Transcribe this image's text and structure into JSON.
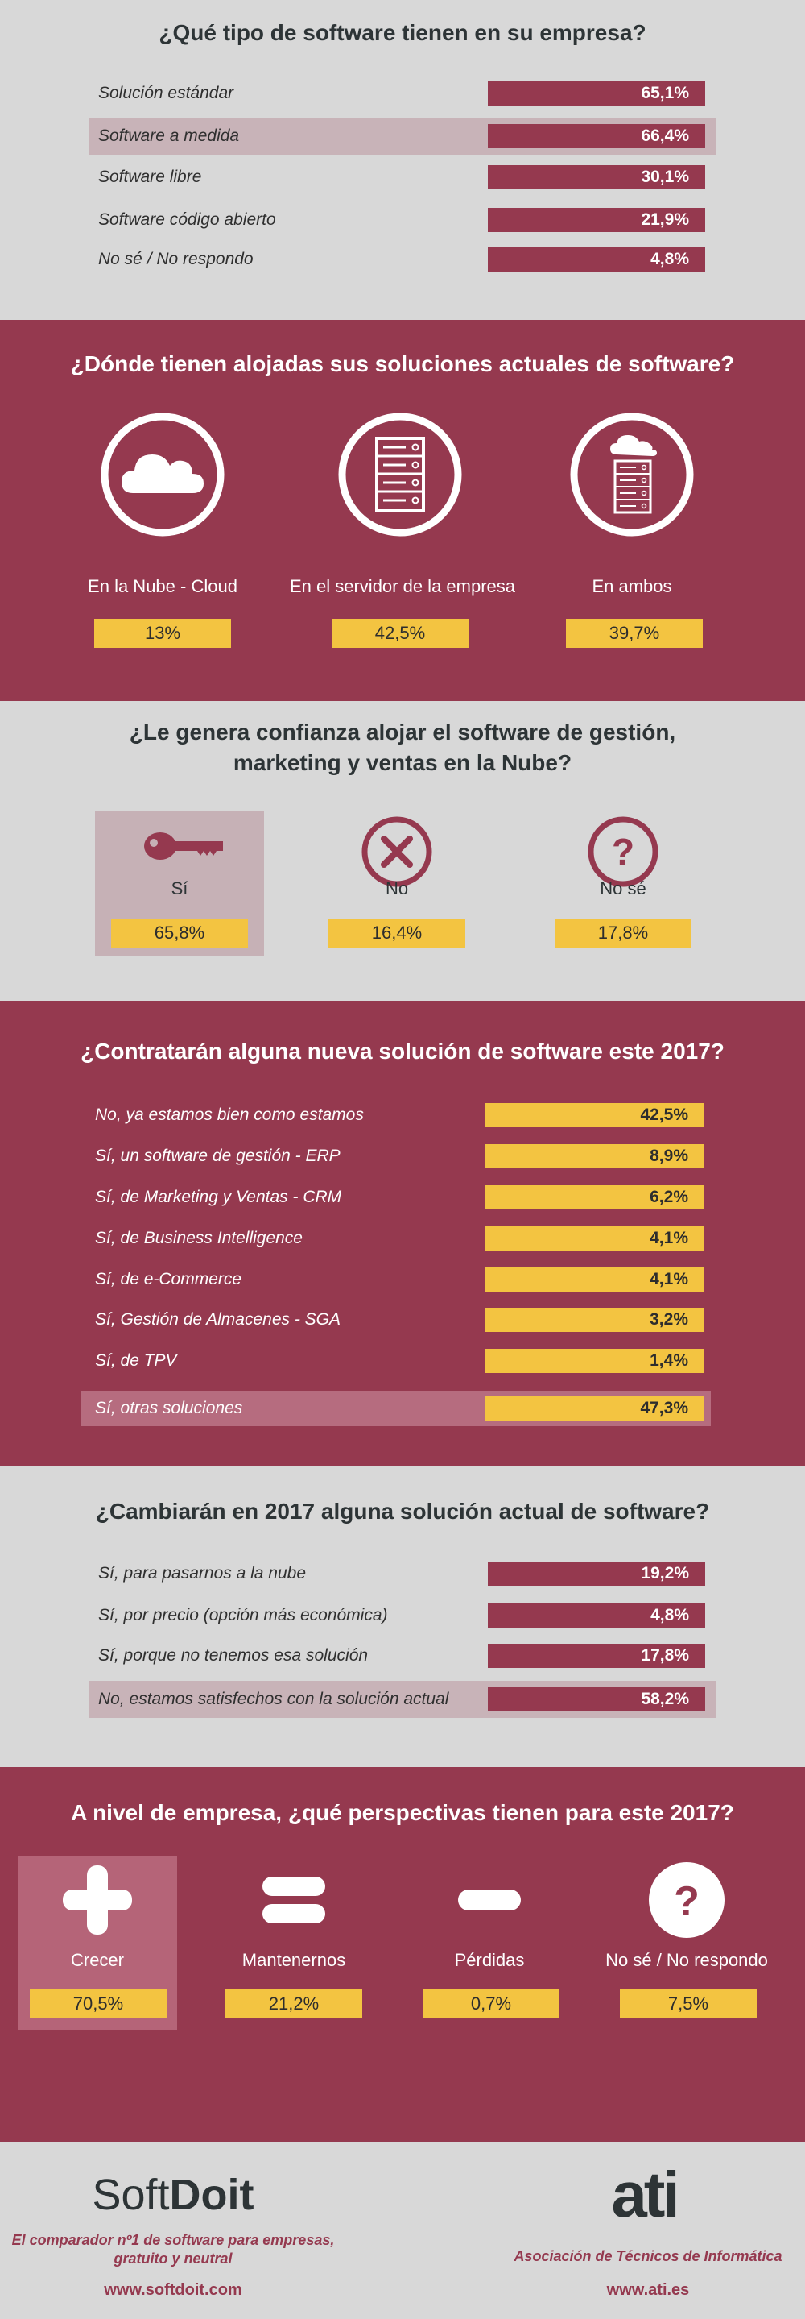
{
  "section1": {
    "title": "¿Qué tipo de software tienen en su empresa?",
    "rows": [
      {
        "label": "Solución estándar",
        "value": "65,1%"
      },
      {
        "label": "Software a medida",
        "value": "66,4%"
      },
      {
        "label": "Software libre",
        "value": "30,1%"
      },
      {
        "label": "Software código abierto",
        "value": "21,9%"
      },
      {
        "label": "No sé / No respondo",
        "value": "4,8%"
      }
    ]
  },
  "section2": {
    "title": "¿Dónde tienen alojadas sus soluciones actuales de software?",
    "items": [
      {
        "label": "En la Nube - Cloud",
        "value": "13%",
        "icon": "cloud-icon"
      },
      {
        "label": "En el servidor de la empresa",
        "value": "42,5%",
        "icon": "server-icon"
      },
      {
        "label": "En ambos",
        "value": "39,7%",
        "icon": "cloud-server-icon"
      }
    ]
  },
  "section3": {
    "title_line1": "¿Le genera confianza alojar el software de gestión,",
    "title_line2": "marketing y ventas en la Nube?",
    "items": [
      {
        "label": "Sí",
        "value": "65,8%",
        "icon": "key-icon"
      },
      {
        "label": "No",
        "value": "16,4%",
        "icon": "x-circle-icon"
      },
      {
        "label": "No sé",
        "value": "17,8%",
        "icon": "question-circle-icon"
      }
    ]
  },
  "section4": {
    "title": "¿Contratarán alguna nueva solución de software este 2017?",
    "rows": [
      {
        "label": "No, ya estamos bien como estamos",
        "value": "42,5%"
      },
      {
        "label": "Sí, un software de gestión - ERP",
        "value": "8,9%"
      },
      {
        "label": "Sí, de Marketing y Ventas - CRM",
        "value": "6,2%"
      },
      {
        "label": "Sí, de Business Intelligence",
        "value": "4,1%"
      },
      {
        "label": "Sí, de e-Commerce",
        "value": "4,1%"
      },
      {
        "label": "Sí, Gestión de Almacenes - SGA",
        "value": "3,2%"
      },
      {
        "label": "Sí, de TPV",
        "value": "1,4%"
      },
      {
        "label": "Sí, otras soluciones",
        "value": "47,3%"
      }
    ]
  },
  "section5": {
    "title": "¿Cambiarán en 2017 alguna solución actual de software?",
    "rows": [
      {
        "label": "Sí, para pasarnos a la nube",
        "value": "19,2%"
      },
      {
        "label": "Sí, por precio (opción más económica)",
        "value": "4,8%"
      },
      {
        "label": "Sí, porque no tenemos esa solución",
        "value": "17,8%"
      },
      {
        "label": "No, estamos satisfechos con la solución actual",
        "value": "58,2%"
      }
    ]
  },
  "section6": {
    "title": "A nivel de empresa, ¿qué perspectivas tienen para este 2017?",
    "items": [
      {
        "label": "Crecer",
        "value": "70,5%",
        "icon": "plus-icon"
      },
      {
        "label": "Mantenernos",
        "value": "21,2%",
        "icon": "equals-icon"
      },
      {
        "label": "Pérdidas",
        "value": "0,7%",
        "icon": "minus-icon"
      },
      {
        "label": "No sé / No respondo",
        "value": "7,5%",
        "icon": "question-circle-icon"
      }
    ]
  },
  "footer": {
    "softdoit_soft": "Soft",
    "softdoit_doit": "Doit",
    "softdoit_tagline_line1": "El comparador nº1 de software para empresas,",
    "softdoit_tagline_line2": "gratuito y neutral",
    "softdoit_url": "www.softdoit.com",
    "ati_logo": "ati",
    "ati_name": "Asociación de Técnicos de Informática",
    "ati_url": "www.ati.es"
  },
  "colors": {
    "wine": "#95394f",
    "yellow": "#f3c441",
    "gray": "#d8d8d8"
  }
}
